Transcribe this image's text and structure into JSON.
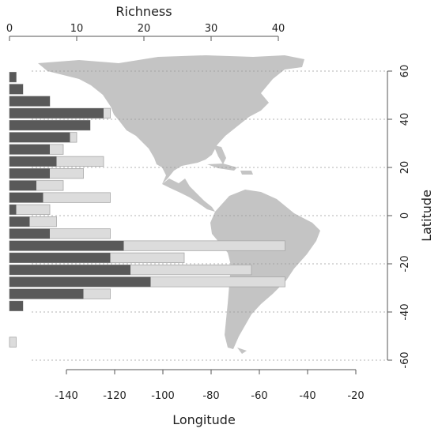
{
  "chart_data": {
    "type": "bar",
    "orientation": "horizontal",
    "overlay": "map of the Americas",
    "title": "",
    "xlabel_top": "Richness",
    "xlabel_bottom": "Longitude",
    "ylabel_right": "Latitude",
    "richness_ticks": [
      "0",
      "10",
      "20",
      "30",
      "40"
    ],
    "richness_lim": [
      0,
      40
    ],
    "longitude_ticks": [
      "-140",
      "-120",
      "-100",
      "-80",
      "-60",
      "-40",
      "-20"
    ],
    "longitude_lim": [
      -155,
      -20
    ],
    "latitude_ticks": [
      "60",
      "40",
      "20",
      "0",
      "-20",
      "-40",
      "-60"
    ],
    "latitude_lim": [
      -62,
      60
    ],
    "grid": "dotted horizontal gridlines at latitude ticks",
    "colors": {
      "dark": "#595959",
      "light": "#dcdcdc",
      "land": "#c4c4c4",
      "axis": "#555555"
    },
    "latitude_bands": [
      57.5,
      52.5,
      47.5,
      42.5,
      37.5,
      32.5,
      27.5,
      22.5,
      17.5,
      12.5,
      7.5,
      2.5,
      -2.5,
      -7.5,
      -12.5,
      -17.5,
      -22.5,
      -27.5,
      -32.5,
      -37.5,
      -42.5,
      -47.5,
      -52.5
    ],
    "series": [
      {
        "values": [
          1,
          2,
          6,
          14,
          12,
          9,
          6,
          7,
          6,
          4,
          5,
          1,
          3,
          6,
          17,
          15,
          18,
          21,
          11,
          2,
          0,
          0,
          0
        ]
      },
      {
        "values": [
          1,
          2,
          6,
          15,
          12,
          10,
          8,
          14,
          11,
          8,
          15,
          6,
          7,
          15,
          41,
          26,
          36,
          41,
          15,
          2,
          0,
          0,
          1
        ]
      }
    ]
  }
}
